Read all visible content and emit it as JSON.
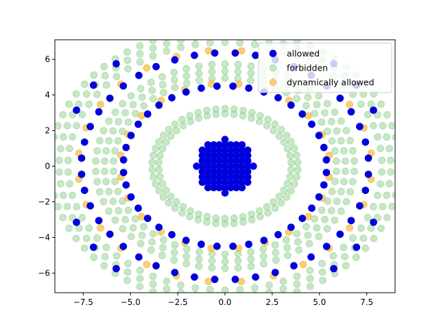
{
  "chart_data": {
    "type": "scatter",
    "title": "",
    "xlabel": "",
    "ylabel": "",
    "xlim": [
      -9.0,
      9.0
    ],
    "ylim": [
      -7.1,
      7.1
    ],
    "xticks": [
      -7.5,
      -5.0,
      -2.5,
      0.0,
      2.5,
      5.0,
      7.5
    ],
    "xtick_labels": [
      "−7.5",
      "−5.0",
      "−2.5",
      "0.0",
      "2.5",
      "5.0",
      "7.5"
    ],
    "yticks": [
      -6,
      -4,
      -2,
      0,
      2,
      4,
      6
    ],
    "ytick_labels": [
      "−6",
      "−4",
      "−2",
      "0",
      "2",
      "4",
      "6"
    ],
    "grid": false,
    "legend": "top-right",
    "marker_radius_data": 0.18,
    "series": [
      {
        "name": "allowed",
        "color": "#0000dd",
        "alpha": 1.0,
        "rings": [
          {
            "kind": "disk",
            "r": 1.5
          },
          {
            "kind": "ring",
            "r": 4.6,
            "count": 40
          },
          {
            "kind": "ring",
            "r": 6.5,
            "count": 44
          },
          {
            "kind": "diag",
            "r": 8.6,
            "count": 30
          }
        ]
      },
      {
        "name": "forbidden",
        "color": "#90d090",
        "alpha": 0.5,
        "rings": [
          {
            "kind": "ring",
            "r": 3.0,
            "count": 46
          },
          {
            "kind": "ring",
            "r": 3.3,
            "count": 50
          },
          {
            "kind": "ring",
            "r": 5.05,
            "count": 54
          },
          {
            "kind": "ring",
            "r": 5.45,
            "count": 58
          },
          {
            "kind": "ring",
            "r": 5.85,
            "count": 62
          },
          {
            "kind": "ring",
            "r": 7.1,
            "count": 66
          },
          {
            "kind": "ring",
            "r": 7.5,
            "count": 70
          },
          {
            "kind": "ring",
            "r": 7.9,
            "count": 74
          }
        ]
      },
      {
        "name": "dynamically allowed",
        "color": "#f5b942",
        "alpha": 0.7,
        "rings": [
          {
            "kind": "ring",
            "r": 4.75,
            "count": 24
          },
          {
            "kind": "ring",
            "r": 6.65,
            "count": 28
          }
        ]
      }
    ]
  }
}
